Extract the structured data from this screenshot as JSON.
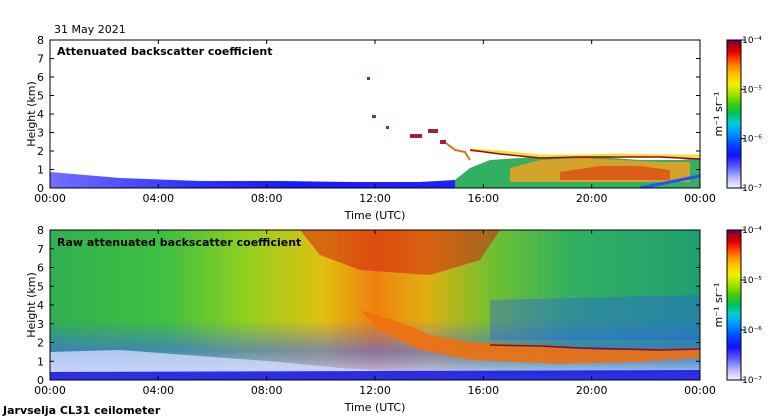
{
  "header": {
    "date": "31 May 2021"
  },
  "footer": {
    "site": "Jarvselja CL31 ceilometer"
  },
  "colorbar": {
    "unit_label": "m⁻¹ sr⁻¹",
    "ticks": [
      "10⁻⁴",
      "10⁻⁵",
      "10⁻⁶",
      "10⁻⁷"
    ],
    "values": [
      0.0001,
      1e-05,
      1e-06,
      1e-07
    ],
    "colors": [
      "#f2f2ff",
      "#c0c0ff",
      "#6060ff",
      "#1010ff",
      "#0050ff",
      "#00a0ff",
      "#00d0d0",
      "#00c060",
      "#40d000",
      "#a0e000",
      "#f0f000",
      "#ffc000",
      "#ff8000",
      "#ff3000",
      "#e00000",
      "#b00000",
      "#800060",
      "#600070"
    ]
  },
  "chart_data": [
    {
      "type": "heatmap",
      "title": "Attenuated backscatter coefficient",
      "xlabel": "Time (UTC)",
      "ylabel": "Height (km)",
      "x_ticks": [
        "00:00",
        "04:00",
        "08:00",
        "12:00",
        "16:00",
        "20:00",
        "00:00"
      ],
      "xlim_hours": [
        0,
        24
      ],
      "y_ticks": [
        "0",
        "1",
        "2",
        "3",
        "4",
        "5",
        "6",
        "7",
        "8"
      ],
      "ylim": [
        0,
        8
      ],
      "cloud_layer": {
        "description": "cloud/boundary layer top",
        "points": [
          [
            13.0,
            3.0
          ],
          [
            14.5,
            2.6
          ],
          [
            15.5,
            2.2
          ],
          [
            16.5,
            2.0
          ],
          [
            17.5,
            1.9
          ],
          [
            18.5,
            1.9
          ],
          [
            19.5,
            1.85
          ],
          [
            20.5,
            1.8
          ],
          [
            21.5,
            1.7
          ],
          [
            22.5,
            1.6
          ],
          [
            23.5,
            1.5
          ],
          [
            24.0,
            1.6
          ]
        ]
      }
    },
    {
      "type": "heatmap",
      "title": "Raw attenuated backscatter coefficient",
      "xlabel": "Time (UTC)",
      "ylabel": "Height (km)",
      "x_ticks": [
        "00:00",
        "04:00",
        "08:00",
        "12:00",
        "16:00",
        "20:00",
        "00:00"
      ],
      "xlim_hours": [
        0,
        24
      ],
      "y_ticks": [
        "0",
        "1",
        "2",
        "3",
        "4",
        "5",
        "6",
        "7",
        "8"
      ],
      "ylim": [
        0,
        8
      ]
    }
  ]
}
